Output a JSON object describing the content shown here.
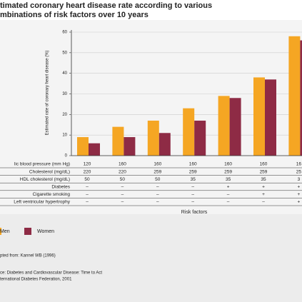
{
  "chart_data": {
    "type": "bar",
    "title": [
      "timated coronary heart disease rate according to various",
      "mbinations of risk factors over 10 years"
    ],
    "y_label": "Estimated rate of coronary heart disease (%)",
    "x_label": "Risk factors",
    "categories": [
      null,
      null,
      null,
      null,
      null,
      null,
      null
    ],
    "series": [
      {
        "name": "Men",
        "color": "#f5a623",
        "values": [
          9,
          14,
          17,
          23,
          29,
          38,
          58
        ]
      },
      {
        "name": "Women",
        "color": "#8e2b45",
        "values": [
          6,
          9,
          11,
          17,
          28,
          37,
          56
        ]
      }
    ],
    "ylim": [
      0,
      60
    ],
    "yticks": [
      0,
      10,
      20,
      30,
      40,
      50,
      60
    ],
    "grid": true,
    "table": [
      {
        "label": "lic blood pressure (mm Hg)",
        "cells": [
          "120",
          "160",
          "160",
          "160",
          "160",
          "160",
          "16"
        ]
      },
      {
        "label": "Cholesterol (mg/dL)",
        "cells": [
          "220",
          "220",
          "259",
          "259",
          "259",
          "259",
          "25"
        ]
      },
      {
        "label": "HDL cholesterol (mg/dL)",
        "cells": [
          "50",
          "50",
          "50",
          "35",
          "35",
          "35",
          "3"
        ]
      },
      {
        "label": "Diabetes",
        "cells": [
          "–",
          "–",
          "–",
          "–",
          "+",
          "+",
          "+"
        ]
      },
      {
        "label": "Cigarette smoking",
        "cells": [
          "–",
          "–",
          "–",
          "–",
          "–",
          "+",
          "+"
        ]
      },
      {
        "label": "Left ventricular hypertrophy",
        "cells": [
          "–",
          "–",
          "–",
          "–",
          "–",
          "–",
          "+"
        ]
      }
    ]
  },
  "notes": [
    "pted from: Kannel WB (1996)",
    "ce: Diabetes and Cardiovascular Disease: Time to Act",
    "ternational Diabetes Federation, 2001"
  ]
}
